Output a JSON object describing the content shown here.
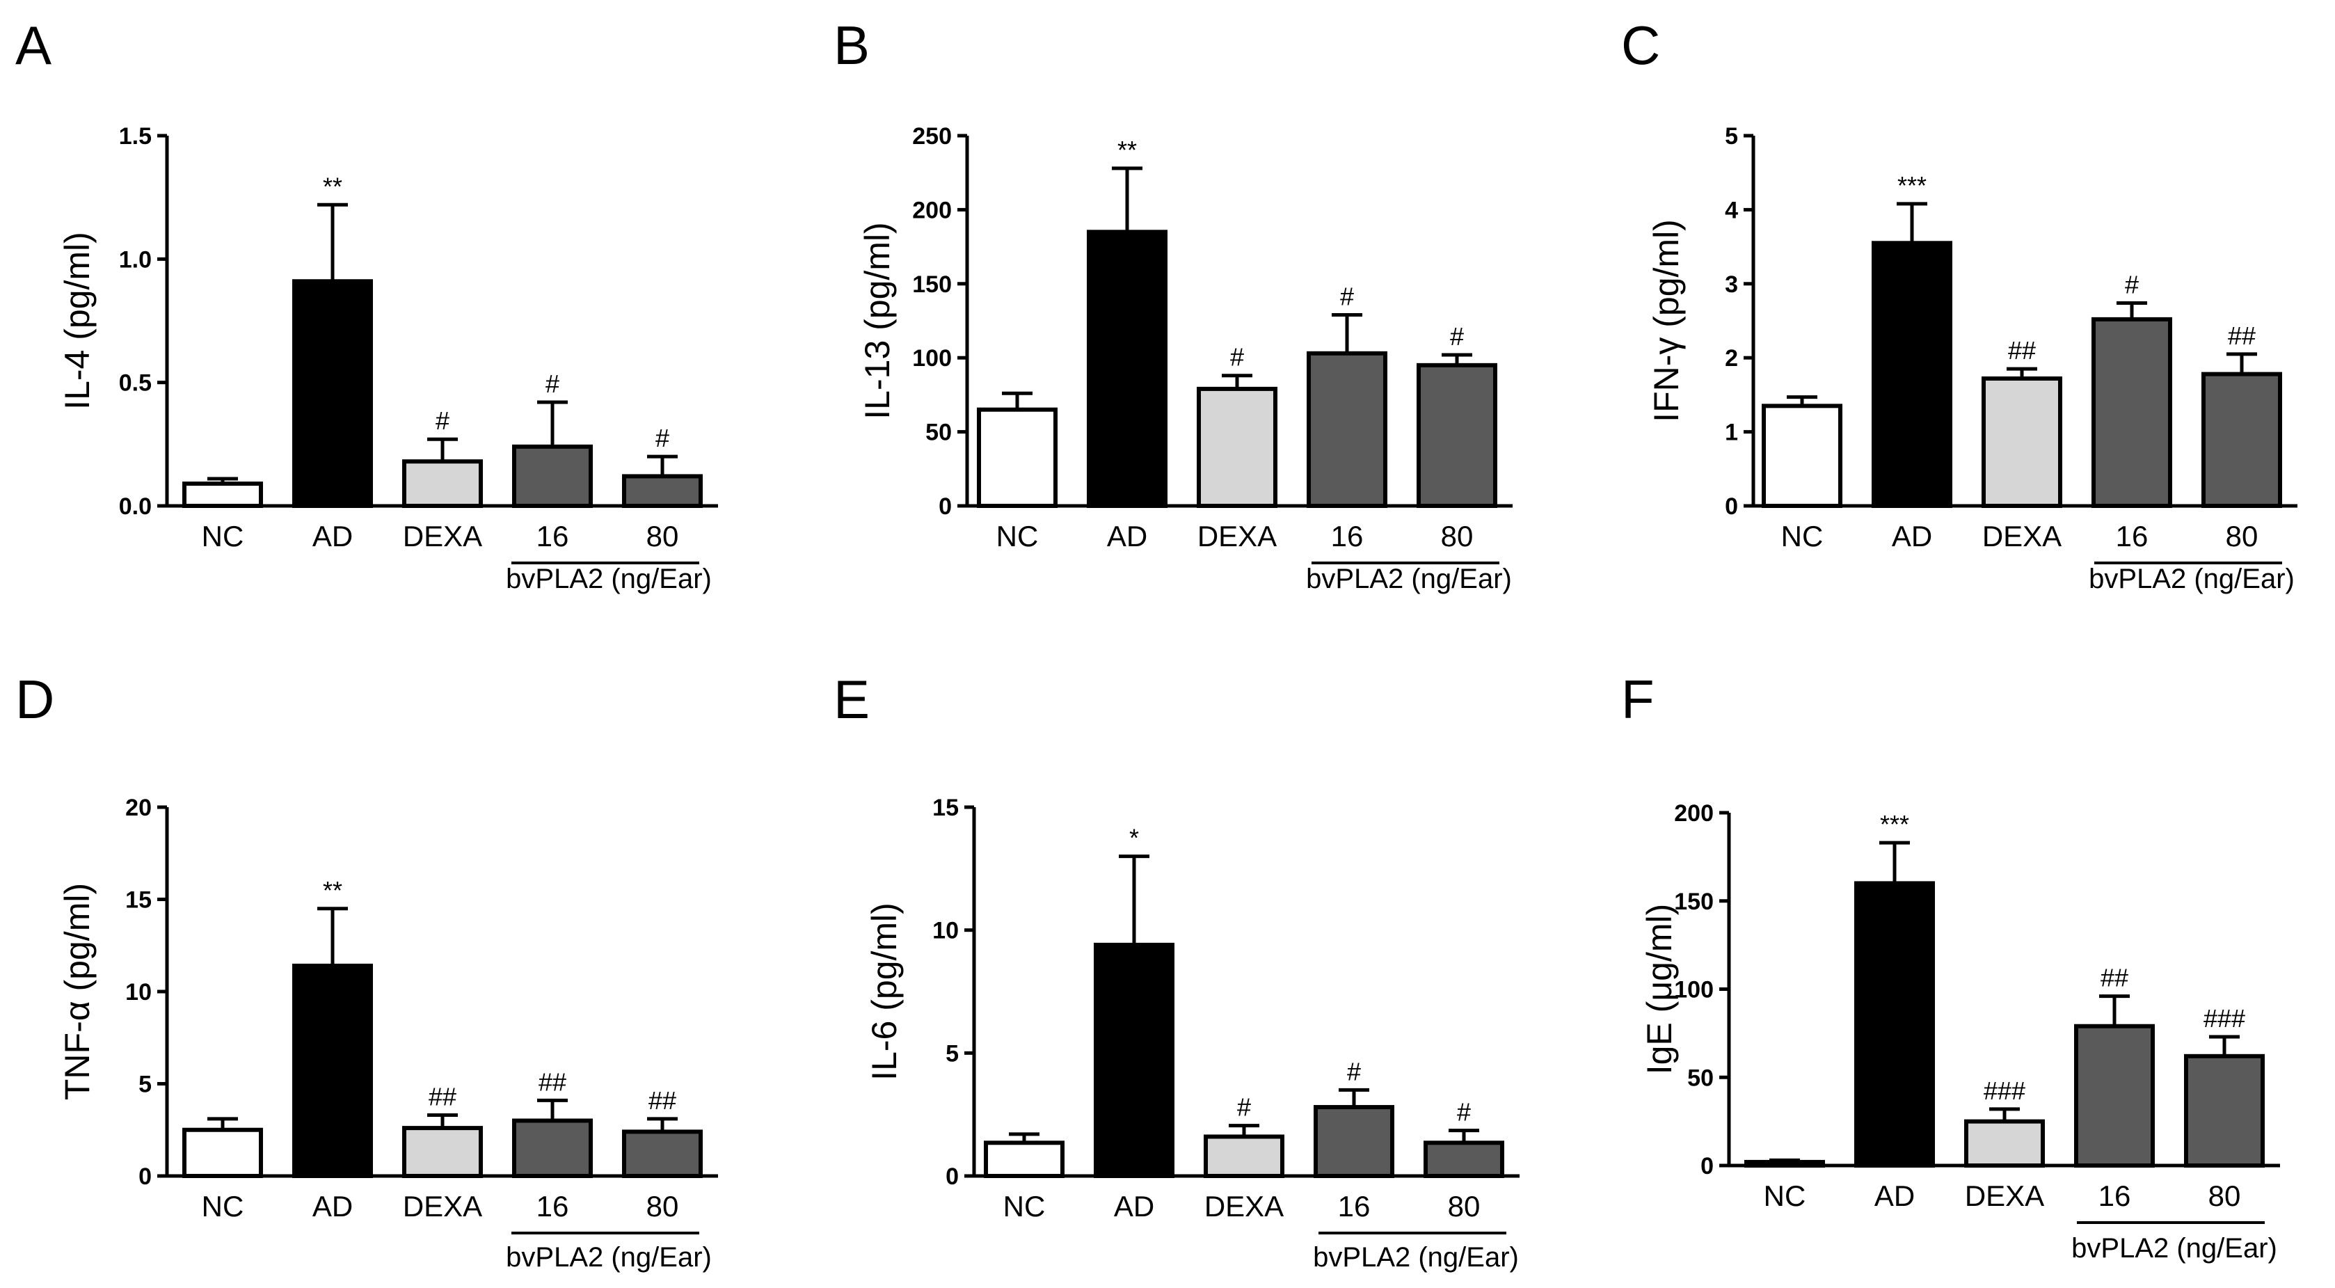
{
  "figure": {
    "panels": [
      {
        "letter": "A"
      },
      {
        "letter": "B"
      },
      {
        "letter": "C"
      },
      {
        "letter": "D"
      },
      {
        "letter": "E"
      },
      {
        "letter": "F"
      }
    ]
  },
  "colors": {
    "NC": "#ffffff",
    "AD": "#000000",
    "DEXA": "#d6d6d6",
    "bvPLA2": "#5a5a5a",
    "stroke": "#000000"
  },
  "chart_data": [
    {
      "type": "bar",
      "panel": "A",
      "ylabel": "IL-4 (pg/ml)",
      "ylim": [
        0,
        1.5
      ],
      "yticks": [
        "0.0",
        "0.5",
        "1.0",
        "1.5"
      ],
      "categories": [
        "NC",
        "AD",
        "DEXA",
        "16",
        "80"
      ],
      "values": [
        0.09,
        0.91,
        0.18,
        0.24,
        0.12
      ],
      "errors": [
        0.02,
        0.31,
        0.09,
        0.18,
        0.08
      ],
      "significance": [
        "",
        "**",
        "#",
        "#",
        "#"
      ],
      "group_label": "bvPLA2 (ng/Ear)"
    },
    {
      "type": "bar",
      "panel": "B",
      "ylabel": "IL-13 (pg/ml)",
      "ylim": [
        0,
        250
      ],
      "yticks": [
        "0",
        "50",
        "100",
        "150",
        "200",
        "250"
      ],
      "categories": [
        "NC",
        "AD",
        "DEXA",
        "16",
        "80"
      ],
      "values": [
        65,
        185,
        79,
        103,
        95
      ],
      "errors": [
        11,
        43,
        9,
        26,
        7
      ],
      "significance": [
        "",
        "**",
        "#",
        "#",
        "#"
      ],
      "group_label": "bvPLA2 (ng/Ear)"
    },
    {
      "type": "bar",
      "panel": "C",
      "ylabel": "IFN-γ (pg/ml)",
      "ylim": [
        0,
        5
      ],
      "yticks": [
        "0",
        "1",
        "2",
        "3",
        "4",
        "5"
      ],
      "categories": [
        "NC",
        "AD",
        "DEXA",
        "16",
        "80"
      ],
      "values": [
        1.35,
        3.55,
        1.72,
        2.52,
        1.78
      ],
      "errors": [
        0.12,
        0.53,
        0.13,
        0.22,
        0.27
      ],
      "significance": [
        "",
        "***",
        "##",
        "#",
        "##"
      ],
      "group_label": "bvPLA2 (ng/Ear)"
    },
    {
      "type": "bar",
      "panel": "D",
      "ylabel": "TNF-α (pg/ml)",
      "ylim": [
        0,
        20
      ],
      "yticks": [
        "0",
        "5",
        "10",
        "15",
        "20"
      ],
      "categories": [
        "NC",
        "AD",
        "DEXA",
        "16",
        "80"
      ],
      "values": [
        2.5,
        11.4,
        2.6,
        3.0,
        2.4
      ],
      "errors": [
        0.6,
        3.1,
        0.7,
        1.1,
        0.7
      ],
      "significance": [
        "",
        "**",
        "##",
        "##",
        "##"
      ],
      "group_label": "bvPLA2 (ng/Ear)"
    },
    {
      "type": "bar",
      "panel": "E",
      "ylabel": "IL-6 (pg/ml)",
      "ylim": [
        0,
        15
      ],
      "yticks": [
        "0",
        "5",
        "10",
        "15"
      ],
      "categories": [
        "NC",
        "AD",
        "DEXA",
        "16",
        "80"
      ],
      "values": [
        1.35,
        9.4,
        1.6,
        2.8,
        1.35
      ],
      "errors": [
        0.35,
        3.6,
        0.45,
        0.7,
        0.5
      ],
      "significance": [
        "",
        "*",
        "#",
        "#",
        "#"
      ],
      "group_label": "bvPLA2 (ng/Ear)"
    },
    {
      "type": "bar",
      "panel": "F",
      "ylabel": "IgE (μg/ml)",
      "ylim": [
        0,
        200
      ],
      "yticks": [
        "0",
        "50",
        "100",
        "150",
        "200"
      ],
      "categories": [
        "NC",
        "AD",
        "DEXA",
        "16",
        "80"
      ],
      "values": [
        2,
        160,
        25,
        79,
        62
      ],
      "errors": [
        1,
        23,
        7,
        17,
        11
      ],
      "significance": [
        "",
        "***",
        "###",
        "##",
        "###"
      ],
      "group_label": "bvPLA2 (ng/Ear)"
    }
  ]
}
